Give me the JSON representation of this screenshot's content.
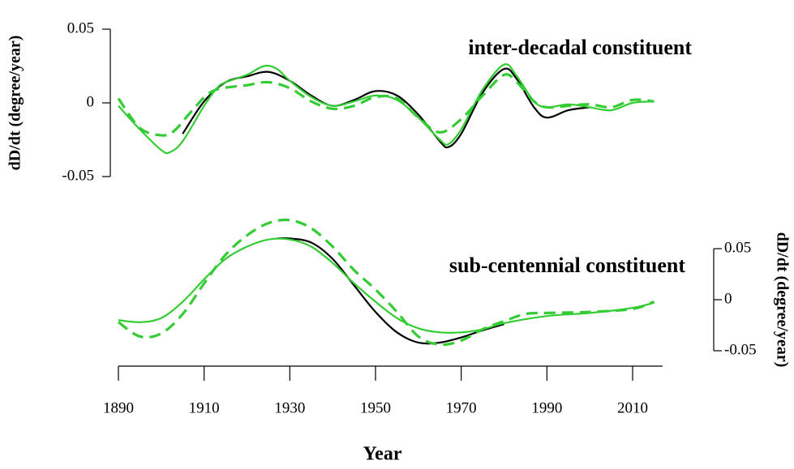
{
  "chart_data": [
    {
      "type": "line",
      "title": "inter-decadal constituent",
      "ylabel": "dD/dt (degree/year)",
      "y_axis_side": "left",
      "xlim": [
        1890,
        2017
      ],
      "ylim": [
        -0.05,
        0.05
      ],
      "yticks": [
        -0.05,
        0,
        0.05
      ],
      "series": [
        {
          "color": "#000000",
          "dashed": false,
          "x": [
            1905,
            1910,
            1915,
            1920,
            1925,
            1930,
            1935,
            1940,
            1945,
            1950,
            1955,
            1960,
            1965,
            1967,
            1970,
            1975,
            1980,
            1983,
            1987,
            1990,
            1995,
            2000
          ],
          "values": [
            -0.021,
            0.001,
            0.014,
            0.018,
            0.021,
            0.015,
            0.005,
            -0.002,
            0.002,
            0.008,
            0.005,
            -0.008,
            -0.026,
            -0.03,
            -0.021,
            0.007,
            0.023,
            0.016,
            -0.003,
            -0.01,
            -0.005,
            -0.003
          ]
        },
        {
          "color": "#33cc33",
          "dashed": false,
          "x": [
            1890,
            1895,
            1900,
            1902,
            1905,
            1910,
            1913,
            1915,
            1920,
            1924,
            1927,
            1930,
            1935,
            1940,
            1945,
            1950,
            1955,
            1960,
            1965,
            1967,
            1970,
            1975,
            1980,
            1983,
            1987,
            1990,
            1995,
            2000,
            2005,
            2010,
            2015
          ],
          "values": [
            -0.002,
            -0.018,
            -0.032,
            -0.0335,
            -0.026,
            -0.002,
            0.01,
            0.014,
            0.019,
            0.025,
            0.023,
            0.015,
            0.004,
            -0.002,
            0.001,
            0.005,
            0.002,
            -0.01,
            -0.025,
            -0.028,
            -0.018,
            0.009,
            0.026,
            0.018,
            0.001,
            -0.003,
            -0.001,
            -0.003,
            -0.005,
            0,
            0.001
          ]
        },
        {
          "color": "#33cc33",
          "dashed": true,
          "x": [
            1890,
            1895,
            1900,
            1903,
            1907,
            1912,
            1920,
            1925,
            1930,
            1935,
            1940,
            1945,
            1950,
            1955,
            1960,
            1965,
            1970,
            1975,
            1980,
            1983,
            1987,
            1990,
            1995,
            2000,
            2005,
            2010,
            2015
          ],
          "values": [
            0.003,
            -0.017,
            -0.022,
            -0.019,
            -0.006,
            0.008,
            0.012,
            0.014,
            0.01,
            0.001,
            -0.004,
            -0.002,
            0.004,
            0.003,
            -0.01,
            -0.02,
            -0.011,
            0.005,
            0.019,
            0.014,
            0.001,
            -0.003,
            -0.002,
            -0.001,
            -0.003,
            0.002,
            0.001
          ]
        }
      ]
    },
    {
      "type": "line",
      "title": "sub-centennial constituent",
      "ylabel": "dD/dt (degree/year)",
      "y_axis_side": "right",
      "xlabel": "Year",
      "xlim": [
        1890,
        2017
      ],
      "xticks": [
        1890,
        1910,
        1930,
        1950,
        1970,
        1990,
        2010
      ],
      "ylim": [
        -0.05,
        0.05
      ],
      "yticks": [
        -0.05,
        0,
        0.05
      ],
      "series": [
        {
          "color": "#000000",
          "dashed": false,
          "x": [
            1927,
            1930,
            1935,
            1940,
            1945,
            1950,
            1955,
            1960,
            1965,
            1970,
            1975,
            1980
          ],
          "values": [
            0.06,
            0.06,
            0.056,
            0.04,
            0.014,
            -0.012,
            -0.032,
            -0.042,
            -0.042,
            -0.037,
            -0.03,
            -0.024
          ]
        },
        {
          "color": "#33cc33",
          "dashed": false,
          "x": [
            1890,
            1895,
            1900,
            1905,
            1910,
            1915,
            1920,
            1925,
            1930,
            1935,
            1940,
            1945,
            1950,
            1955,
            1960,
            1965,
            1970,
            1975,
            1980,
            1990,
            2000,
            2010,
            2015
          ],
          "values": [
            -0.02,
            -0.022,
            -0.018,
            -0.002,
            0.02,
            0.04,
            0.052,
            0.059,
            0.059,
            0.052,
            0.036,
            0.016,
            -0.002,
            -0.018,
            -0.028,
            -0.032,
            -0.032,
            -0.029,
            -0.023,
            -0.016,
            -0.013,
            -0.008,
            -0.003
          ]
        },
        {
          "color": "#33cc33",
          "dashed": true,
          "x": [
            1890,
            1895,
            1900,
            1905,
            1910,
            1915,
            1920,
            1925,
            1930,
            1935,
            1940,
            1945,
            1950,
            1955,
            1960,
            1965,
            1970,
            1975,
            1980,
            1985,
            1990,
            2000,
            2010,
            2015
          ],
          "values": [
            -0.022,
            -0.036,
            -0.033,
            -0.014,
            0.016,
            0.044,
            0.063,
            0.075,
            0.078,
            0.07,
            0.052,
            0.029,
            0.01,
            -0.012,
            -0.036,
            -0.044,
            -0.04,
            -0.029,
            -0.021,
            -0.014,
            -0.013,
            -0.012,
            -0.009,
            -0.002
          ]
        }
      ]
    }
  ]
}
